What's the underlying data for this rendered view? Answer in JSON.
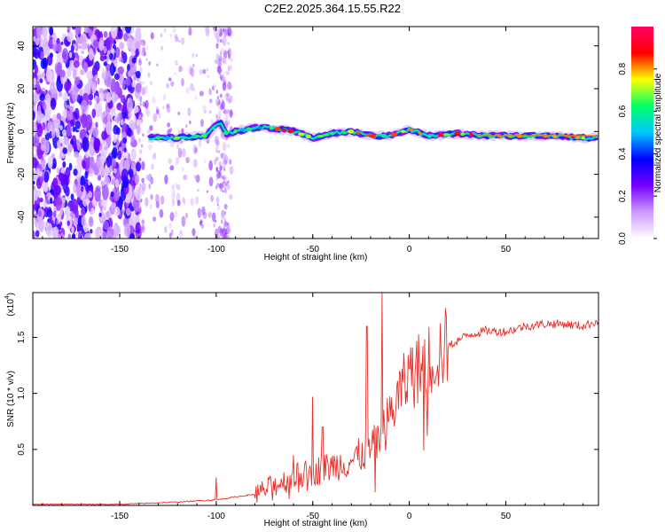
{
  "title": "C2E2.2025.364.15.55.R22",
  "chart_data": [
    {
      "type": "heatmap",
      "xlabel": "Height of straight line (km)",
      "ylabel": "Frequency (Hz)",
      "xlim": [
        -195,
        98
      ],
      "ylim": [
        -50,
        49
      ],
      "xticks": [
        -150,
        -100,
        -50,
        0,
        50
      ],
      "xtick_labels": [
        "-150",
        "-100",
        "-50",
        "0",
        "50"
      ],
      "yticks": [
        -40,
        -20,
        0,
        20,
        40
      ],
      "ytick_labels": [
        "-40",
        "-20",
        "0",
        "20",
        "40"
      ],
      "colorbar": {
        "label": "Normalized spectral amplitude",
        "range": [
          0,
          1
        ],
        "ticks": [
          0.0,
          0.2,
          0.4,
          0.6,
          0.8
        ],
        "tick_labels": [
          "0.0",
          "0.2",
          "0.4",
          "0.6",
          "0.8"
        ],
        "colors": [
          "#ffffff",
          "#cc99ff",
          "#7700ff",
          "#0000ff",
          "#00c8ff",
          "#00ff66",
          "#ffff00",
          "#ff0000",
          "#ff0066"
        ]
      },
      "ridge": {
        "x": [
          -135,
          -120,
          -105,
          -98,
          -95,
          -85,
          -75,
          -60,
          -50,
          -40,
          -30,
          -20,
          -10,
          0,
          10,
          25,
          40,
          60,
          80,
          90,
          98
        ],
        "y": [
          -3,
          -3,
          -2,
          5,
          -1,
          1,
          2,
          0,
          -3,
          -1,
          0,
          -2,
          -2,
          1,
          -2,
          -1,
          -2,
          -2,
          -2,
          -3,
          -3
        ]
      },
      "noise_region": {
        "x_from": -195,
        "x_to": -95,
        "freq_from": -50,
        "freq_to": 49
      }
    },
    {
      "type": "line",
      "xlabel": "Height of straight line (km)",
      "ylabel": "SNR (10 * v/v)",
      "y_scale_label": "(x10",
      "y_scale_exp": "4",
      "xlim": [
        -195,
        98
      ],
      "ylim": [
        0,
        1.9
      ],
      "xticks": [
        -150,
        -100,
        -50,
        0,
        50
      ],
      "xtick_labels": [
        "-150",
        "-100",
        "-50",
        "0",
        "50"
      ],
      "yticks": [
        0.5,
        1.0,
        1.5
      ],
      "ytick_labels": [
        "0.5",
        "1.0",
        "1.5"
      ],
      "series": [
        {
          "name": "SNR",
          "color": "#e8302a",
          "trend_x": [
            -195,
            -150,
            -120,
            -100,
            -80,
            -70,
            -60,
            -50,
            -40,
            -30,
            -25,
            -20,
            -15,
            -10,
            -5,
            0,
            10,
            20,
            30,
            40,
            50,
            60,
            70,
            80,
            90,
            98
          ],
          "trend_y": [
            0.01,
            0.01,
            0.03,
            0.05,
            0.1,
            0.18,
            0.25,
            0.3,
            0.35,
            0.4,
            0.45,
            0.5,
            0.6,
            0.8,
            1.0,
            1.15,
            1.3,
            1.42,
            1.52,
            1.56,
            1.55,
            1.6,
            1.62,
            1.62,
            1.6,
            1.65
          ],
          "spikes_x": [
            -100,
            -60,
            -50,
            -45,
            -22,
            -14,
            0
          ],
          "spikes_y": [
            0.25,
            0.45,
            0.97,
            0.7,
            1.6,
            1.9,
            1.22
          ]
        }
      ]
    }
  ]
}
